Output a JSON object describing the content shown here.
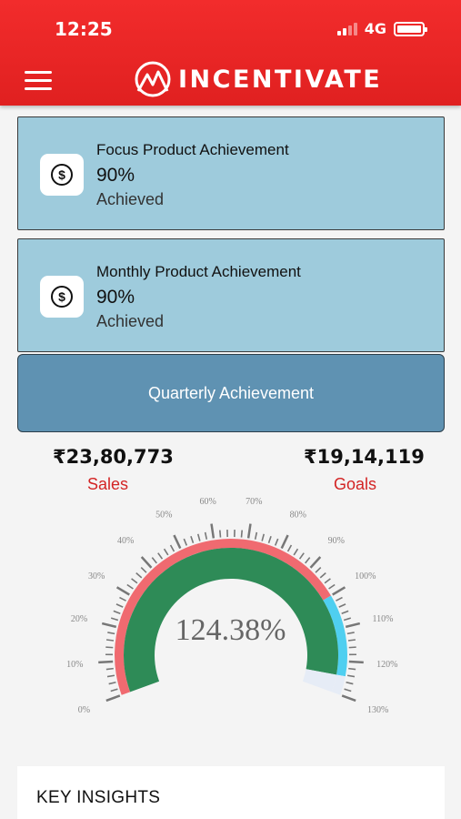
{
  "status_bar": {
    "time": "12:25",
    "network": "4G"
  },
  "header": {
    "brand": "INCENTIVATE",
    "menu_icon": "hamburger-menu-icon",
    "logo_icon": "mountain-logo-icon"
  },
  "cards": [
    {
      "title": "Focus Product Achievement",
      "percent": "90%",
      "status": "Achieved",
      "icon": "dollar-coin-icon"
    },
    {
      "title": "Monthly Product Achievement",
      "percent": "90%",
      "status": "Achieved",
      "icon": "dollar-coin-icon"
    }
  ],
  "quarterly": {
    "label": "Quarterly Achievement"
  },
  "summary": {
    "sales_amount": "₹23,80,773",
    "sales_label": "Sales",
    "goals_amount": "₹19,14,119",
    "goals_label": "Goals"
  },
  "gauge": {
    "value_text": "124.38%",
    "value": 124.38,
    "min": 0,
    "max": 130,
    "major_labels": [
      "0%",
      "10%",
      "20%",
      "30%",
      "40%",
      "50%",
      "60%",
      "70%",
      "80%",
      "90%",
      "100%",
      "110%",
      "120%",
      "130%"
    ],
    "bands": [
      {
        "from": 0,
        "to": 100,
        "color": "#f06a70"
      },
      {
        "from": 100,
        "to": 124.38,
        "color": "#4fcff0"
      },
      {
        "from": 124.38,
        "to": 130,
        "color": "#e6ecf6"
      }
    ],
    "fill_color": "#2e8b57",
    "tick_color": "#777777"
  },
  "insights": {
    "title": "KEY INSIGHTS"
  }
}
